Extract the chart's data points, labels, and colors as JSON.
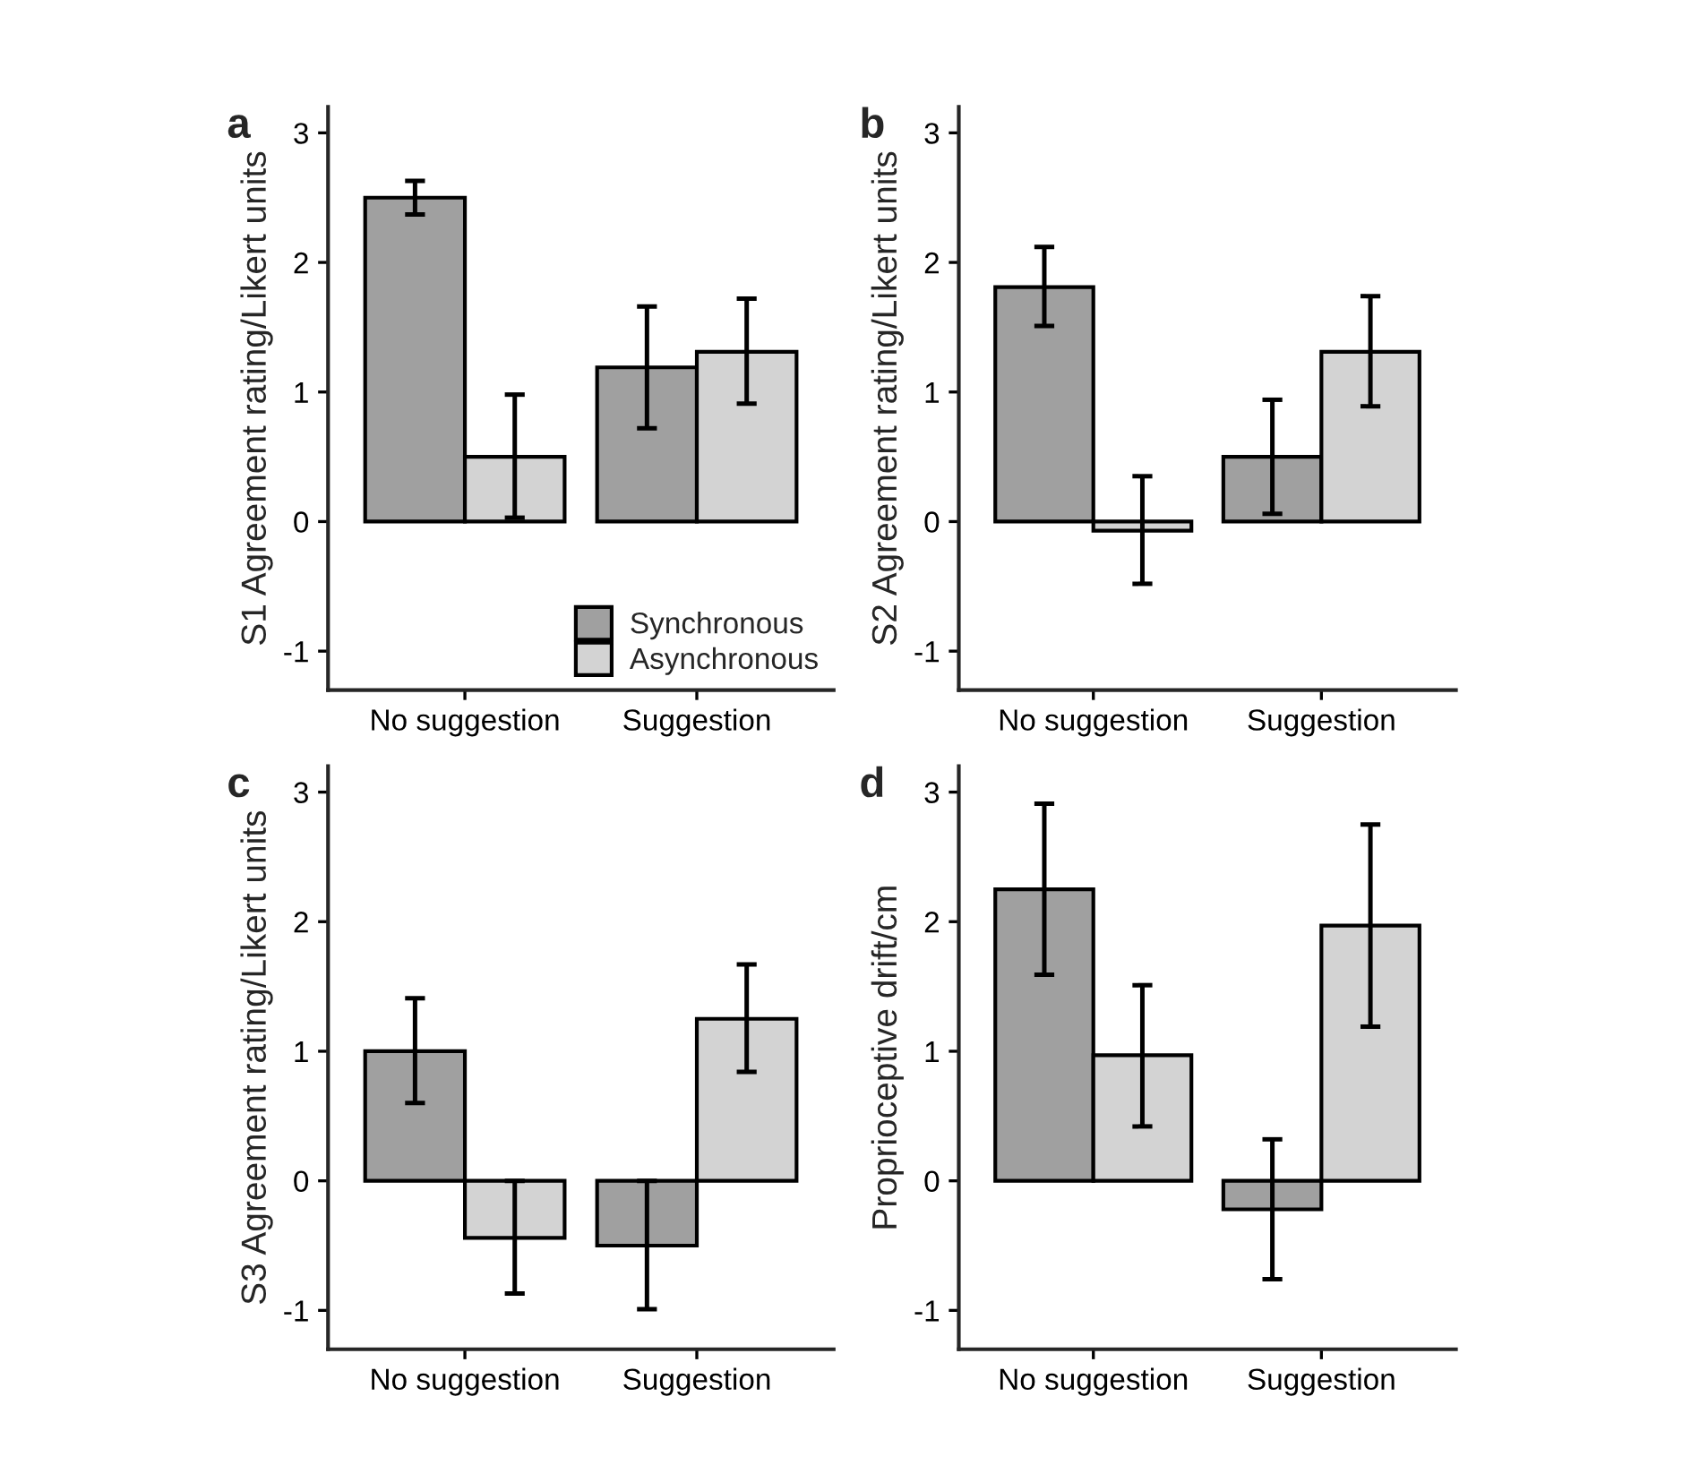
{
  "chart_data": [
    {
      "type": "bar",
      "title": "a",
      "ylabel": "S1 Agreement rating/Likert units",
      "categories": [
        "No suggestion",
        "Suggestion"
      ],
      "ylim": [
        -1.3,
        3.2
      ],
      "yticks": [
        -1,
        0,
        1,
        2,
        3
      ],
      "grid": false,
      "legend": "bottom right",
      "series": [
        {
          "name": "Synchronous",
          "color": "#a0a0a0",
          "values": [
            2.5,
            1.19
          ],
          "errors": [
            [
              2.37,
              2.63
            ],
            [
              0.72,
              1.66
            ]
          ]
        },
        {
          "name": "Asynchronous",
          "color": "#d3d3d3",
          "values": [
            0.5,
            1.31
          ],
          "errors": [
            [
              0.03,
              0.98
            ],
            [
              0.91,
              1.72
            ]
          ]
        }
      ]
    },
    {
      "type": "bar",
      "title": "b",
      "ylabel": "S2 Agreement rating/Likert units",
      "categories": [
        "No suggestion",
        "Suggestion"
      ],
      "ylim": [
        -1.3,
        3.2
      ],
      "yticks": [
        -1,
        0,
        1,
        2,
        3
      ],
      "grid": false,
      "legend": false,
      "series": [
        {
          "color": "#a0a0a0",
          "values": [
            1.81,
            0.5
          ],
          "errors": [
            [
              1.51,
              2.12
            ],
            [
              0.06,
              0.94
            ]
          ]
        },
        {
          "color": "#d3d3d3",
          "values": [
            -0.07,
            1.31
          ],
          "errors": [
            [
              -0.48,
              0.35
            ],
            [
              0.89,
              1.74
            ]
          ]
        }
      ]
    },
    {
      "type": "bar",
      "title": "c",
      "ylabel": "S3 Agreement rating/Likert units",
      "categories": [
        "No suggestion",
        "Suggestion"
      ],
      "ylim": [
        -1.3,
        3.2
      ],
      "yticks": [
        -1,
        0,
        1,
        2,
        3
      ],
      "grid": false,
      "legend": false,
      "series": [
        {
          "color": "#a0a0a0",
          "values": [
            1.0,
            -0.5
          ],
          "errors": [
            [
              0.6,
              1.41
            ],
            [
              -0.99,
              0
            ]
          ]
        },
        {
          "color": "#d3d3d3",
          "values": [
            -0.44,
            1.25
          ],
          "errors": [
            [
              -0.87,
              0
            ],
            [
              0.84,
              1.67
            ]
          ]
        }
      ]
    },
    {
      "type": "bar",
      "title": "d",
      "ylabel": "Proprioceptive drift/cm",
      "categories": [
        "No suggestion",
        "Suggestion"
      ],
      "ylim": [
        -1.3,
        3.2
      ],
      "yticks": [
        -1,
        0,
        1,
        2,
        3
      ],
      "grid": false,
      "legend": false,
      "series": [
        {
          "color": "#a0a0a0",
          "values": [
            2.25,
            -0.22
          ],
          "errors": [
            [
              1.59,
              2.91
            ],
            [
              -0.76,
              0.32
            ]
          ]
        },
        {
          "color": "#d3d3d3",
          "values": [
            0.97,
            1.97
          ],
          "errors": [
            [
              0.42,
              1.51
            ],
            [
              1.19,
              2.75
            ]
          ]
        }
      ]
    }
  ]
}
